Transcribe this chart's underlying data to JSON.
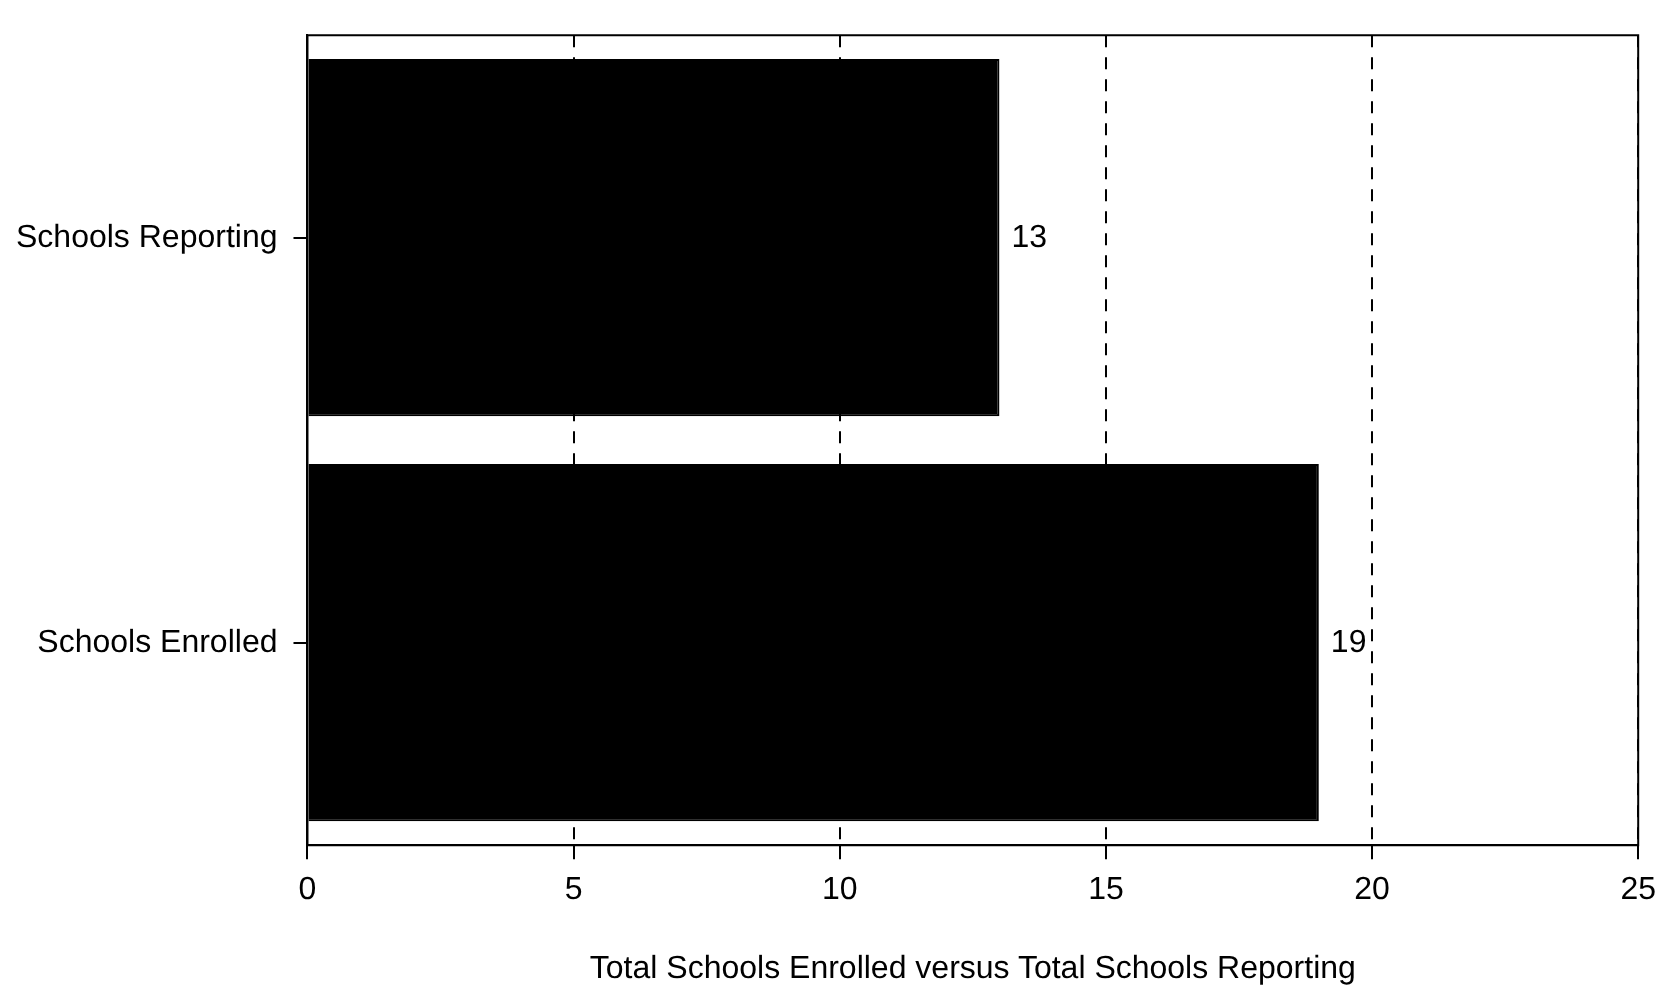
{
  "chart_data": {
    "type": "bar",
    "orientation": "horizontal",
    "categories": [
      "Schools Reporting",
      "Schools Enrolled"
    ],
    "values": [
      13,
      19
    ],
    "color": "#000000",
    "xlim": [
      0,
      25
    ],
    "xticks": [
      0,
      5,
      10,
      15,
      20,
      25
    ],
    "xlabel": "Total Schools Enrolled versus Total Schools Reporting",
    "grid": "x",
    "data_labels": true,
    "legend": false
  }
}
